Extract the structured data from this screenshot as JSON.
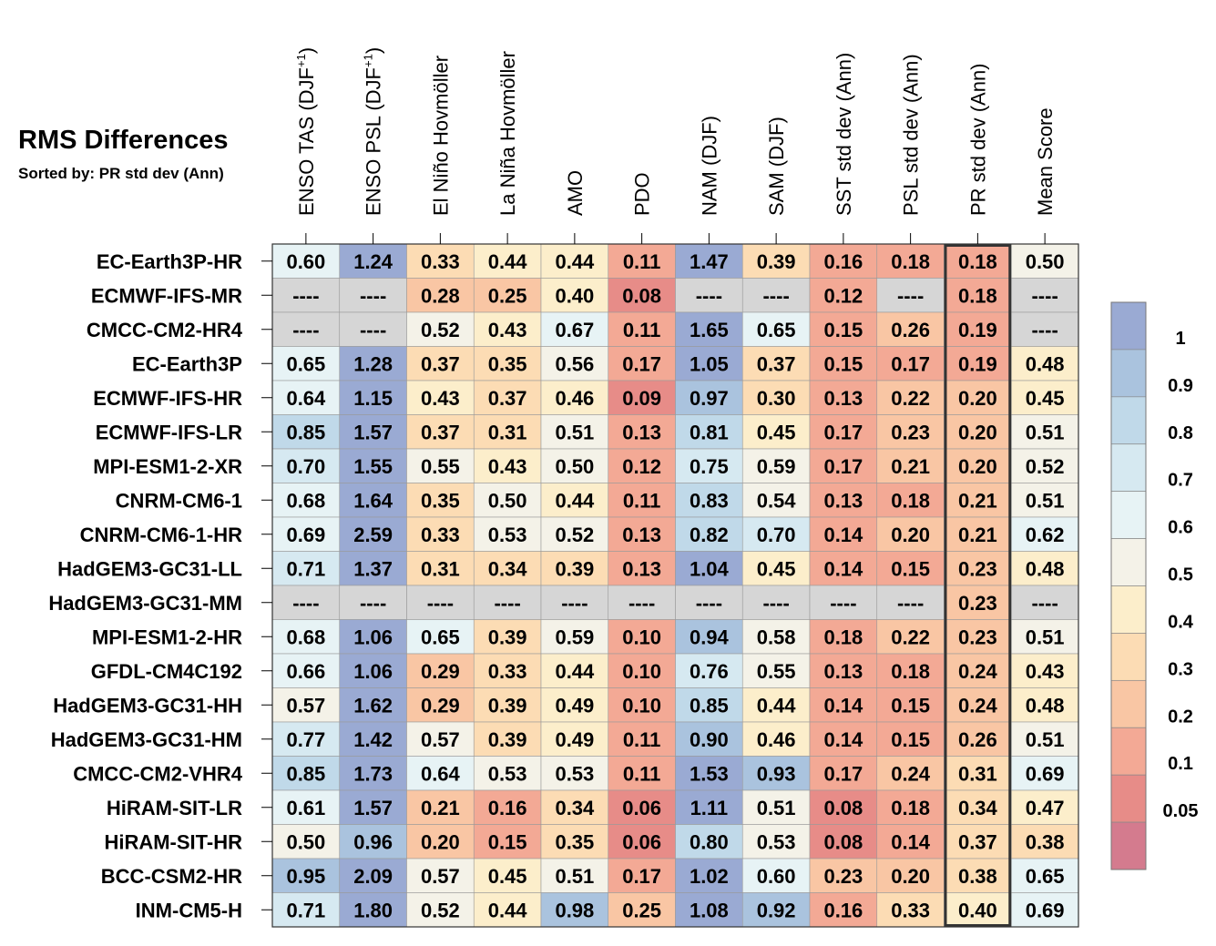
{
  "chart_data": {
    "type": "heatmap",
    "title": "RMS Differences",
    "subtitle": "Sorted by: PR std dev (Ann)",
    "columns": [
      "ENSO TAS (DJF+1)",
      "ENSO PSL (DJF+1)",
      "El Niño Hovmöller",
      "La Niña Hovmöller",
      "AMO",
      "PDO",
      "NAM (DJF)",
      "SAM (DJF)",
      "SST std dev (Ann)",
      "PSL std dev (Ann)",
      "PR std dev (Ann)",
      "Mean Score"
    ],
    "column_labels": [
      {
        "text": "ENSO TAS (DJF",
        "sup": "+1",
        "tail": ")"
      },
      {
        "text": "ENSO PSL (DJF",
        "sup": "+1",
        "tail": ")"
      },
      {
        "text": "El Niño Hovmöller",
        "sup": "",
        "tail": ""
      },
      {
        "text": "La Niña Hovmöller",
        "sup": "",
        "tail": ""
      },
      {
        "text": "AMO",
        "sup": "",
        "tail": ""
      },
      {
        "text": "PDO",
        "sup": "",
        "tail": ""
      },
      {
        "text": "NAM (DJF)",
        "sup": "",
        "tail": ""
      },
      {
        "text": "SAM (DJF)",
        "sup": "",
        "tail": ""
      },
      {
        "text": "SST std dev (Ann)",
        "sup": "",
        "tail": ""
      },
      {
        "text": "PSL std dev (Ann)",
        "sup": "",
        "tail": ""
      },
      {
        "text": "PR std dev (Ann)",
        "sup": "",
        "tail": ""
      },
      {
        "text": "Mean Score",
        "sup": "",
        "tail": ""
      }
    ],
    "rows": [
      "EC-Earth3P-HR",
      "ECMWF-IFS-MR",
      "CMCC-CM2-HR4",
      "EC-Earth3P",
      "ECMWF-IFS-HR",
      "ECMWF-IFS-LR",
      "MPI-ESM1-2-XR",
      "CNRM-CM6-1",
      "CNRM-CM6-1-HR",
      "HadGEM3-GC31-LL",
      "HadGEM3-GC31-MM",
      "MPI-ESM1-2-HR",
      "GFDL-CM4C192",
      "HadGEM3-GC31-HH",
      "HadGEM3-GC31-HM",
      "CMCC-CM2-VHR4",
      "HiRAM-SIT-LR",
      "HiRAM-SIT-HR",
      "BCC-CSM2-HR",
      "INM-CM5-H"
    ],
    "values": [
      [
        0.6,
        1.24,
        0.33,
        0.44,
        0.44,
        0.11,
        1.47,
        0.39,
        0.16,
        0.18,
        0.18,
        0.5
      ],
      [
        null,
        null,
        0.28,
        0.25,
        0.4,
        0.08,
        null,
        null,
        0.12,
        null,
        0.18,
        null
      ],
      [
        null,
        null,
        0.52,
        0.43,
        0.67,
        0.11,
        1.65,
        0.65,
        0.15,
        0.26,
        0.19,
        null
      ],
      [
        0.65,
        1.28,
        0.37,
        0.35,
        0.56,
        0.17,
        1.05,
        0.37,
        0.15,
        0.17,
        0.19,
        0.48
      ],
      [
        0.64,
        1.15,
        0.43,
        0.37,
        0.46,
        0.09,
        0.97,
        0.3,
        0.13,
        0.22,
        0.2,
        0.45
      ],
      [
        0.85,
        1.57,
        0.37,
        0.31,
        0.51,
        0.13,
        0.81,
        0.45,
        0.17,
        0.23,
        0.2,
        0.51
      ],
      [
        0.7,
        1.55,
        0.55,
        0.43,
        0.5,
        0.12,
        0.75,
        0.59,
        0.17,
        0.21,
        0.2,
        0.52
      ],
      [
        0.68,
        1.64,
        0.35,
        0.5,
        0.44,
        0.11,
        0.83,
        0.54,
        0.13,
        0.18,
        0.21,
        0.51
      ],
      [
        0.69,
        2.59,
        0.33,
        0.53,
        0.52,
        0.13,
        0.82,
        0.7,
        0.14,
        0.2,
        0.21,
        0.62
      ],
      [
        0.71,
        1.37,
        0.31,
        0.34,
        0.39,
        0.13,
        1.04,
        0.45,
        0.14,
        0.15,
        0.23,
        0.48
      ],
      [
        null,
        null,
        null,
        null,
        null,
        null,
        null,
        null,
        null,
        null,
        0.23,
        null
      ],
      [
        0.68,
        1.06,
        0.65,
        0.39,
        0.59,
        0.1,
        0.94,
        0.58,
        0.18,
        0.22,
        0.23,
        0.51
      ],
      [
        0.66,
        1.06,
        0.29,
        0.33,
        0.44,
        0.1,
        0.76,
        0.55,
        0.13,
        0.18,
        0.24,
        0.43
      ],
      [
        0.57,
        1.62,
        0.29,
        0.39,
        0.49,
        0.1,
        0.85,
        0.44,
        0.14,
        0.15,
        0.24,
        0.48
      ],
      [
        0.77,
        1.42,
        0.57,
        0.39,
        0.49,
        0.11,
        0.9,
        0.46,
        0.14,
        0.15,
        0.26,
        0.51
      ],
      [
        0.85,
        1.73,
        0.64,
        0.53,
        0.53,
        0.11,
        1.53,
        0.93,
        0.17,
        0.24,
        0.31,
        0.69
      ],
      [
        0.61,
        1.57,
        0.21,
        0.16,
        0.34,
        0.06,
        1.11,
        0.51,
        0.08,
        0.18,
        0.34,
        0.47
      ],
      [
        0.5,
        0.96,
        0.2,
        0.15,
        0.35,
        0.06,
        0.8,
        0.53,
        0.08,
        0.14,
        0.37,
        0.38
      ],
      [
        0.95,
        2.09,
        0.57,
        0.45,
        0.51,
        0.17,
        1.02,
        0.6,
        0.23,
        0.2,
        0.38,
        0.65
      ],
      [
        0.71,
        1.8,
        0.52,
        0.44,
        0.98,
        0.25,
        1.08,
        0.92,
        0.16,
        0.33,
        0.4,
        0.69
      ]
    ],
    "missing_label": "----",
    "highlight_column": "PR std dev (Ann)",
    "colorbar": {
      "ticks": [
        "1",
        "0.9",
        "0.8",
        "0.7",
        "0.6",
        "0.5",
        "0.4",
        "0.3",
        "0.2",
        "0.1",
        "0.05"
      ],
      "bins": [
        1.0,
        0.9,
        0.8,
        0.7,
        0.6,
        0.5,
        0.4,
        0.3,
        0.2,
        0.1,
        0.05
      ],
      "colors_top_to_bottom": [
        "#9aaad3",
        "#aac3de",
        "#c0d9e9",
        "#d6e9f1",
        "#e7f3f5",
        "#f4f2e8",
        "#fceecb",
        "#fcdcb4",
        "#f9c6a4",
        "#f3a995",
        "#e78c88",
        "#d47b8e"
      ],
      "missing_color": "#d6d6d6"
    }
  }
}
